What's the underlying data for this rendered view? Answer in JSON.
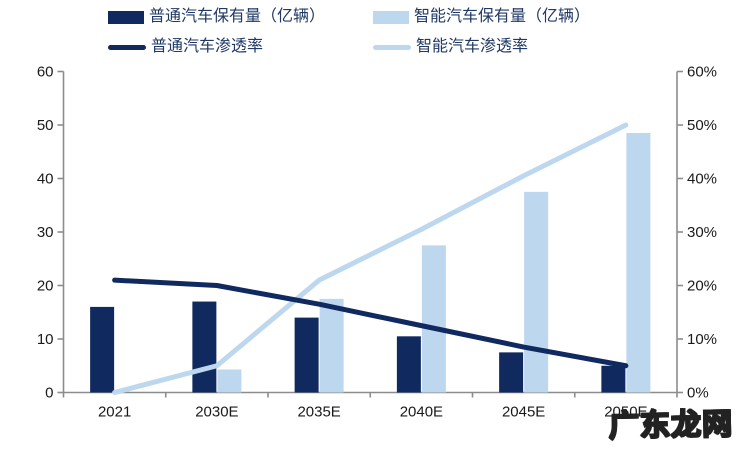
{
  "watermark": {
    "text": "广东龙网"
  },
  "chart_data": {
    "type": "combo-bar-line",
    "title": "",
    "grid": false,
    "legend_position": "top",
    "categories": [
      "2021",
      "2030E",
      "2035E",
      "2040E",
      "2045E",
      "2050E"
    ],
    "series": [
      {
        "name": "普通汽车保有量（亿辆）",
        "type": "bar",
        "axis": "left",
        "color": "#102a60",
        "values": [
          16,
          17,
          14,
          10.5,
          7.5,
          5
        ]
      },
      {
        "name": "智能汽车保有量（亿辆）",
        "type": "bar",
        "axis": "left",
        "color": "#bdd7ee",
        "values": [
          0,
          4.3,
          17.5,
          27.5,
          37.5,
          48.5
        ]
      },
      {
        "name": "普通汽车渗透率",
        "type": "line",
        "axis": "right",
        "color": "#102a60",
        "values": [
          21,
          20,
          16.5,
          12.5,
          8.5,
          5
        ]
      },
      {
        "name": "智能汽车渗透率",
        "type": "line",
        "axis": "right",
        "color": "#bdd7ee",
        "values": [
          0,
          5,
          21,
          30.5,
          40.5,
          50
        ]
      }
    ],
    "left_axis": {
      "min": 0,
      "max": 60,
      "ticks": [
        "0",
        "10",
        "20",
        "30",
        "40",
        "50",
        "60"
      ]
    },
    "right_axis": {
      "min": 0,
      "max": 60,
      "ticks": [
        "0%",
        "10%",
        "20%",
        "30%",
        "40%",
        "50%",
        "60%"
      ]
    },
    "axis_color": "#8c8c8c",
    "tick_label_color": "#1a1a1a",
    "legend_text_color": "#1f3864"
  }
}
